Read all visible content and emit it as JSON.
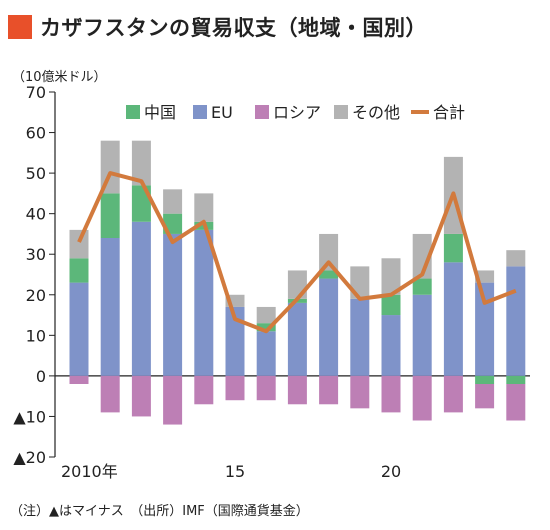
{
  "title": "カザフスタンの貿易収支（地域・国別）",
  "unit_label": "（10億米ドル）",
  "note": "（注）▲はマイナス　（出所）IMF（国際通貨基金）",
  "colors": {
    "title_mark": "#e8502a",
    "china": "#5cb77a",
    "eu": "#7f93c9",
    "russia": "#bd7fb5",
    "other": "#b3b3b3",
    "total": "#d27a3d",
    "axis": "#222222"
  },
  "chart_data": {
    "type": "bar",
    "stacked": true,
    "years": [
      2010,
      2011,
      2012,
      2013,
      2014,
      2015,
      2016,
      2017,
      2018,
      2019,
      2020,
      2021,
      2022,
      2023,
      2024
    ],
    "x_tick_labels": [
      {
        "index": 0,
        "label": "2010年"
      },
      {
        "index": 5,
        "label": "15"
      },
      {
        "index": 10,
        "label": "20"
      }
    ],
    "ylim": [
      -20,
      70
    ],
    "y_ticks": [
      {
        "value": 70,
        "label": "70"
      },
      {
        "value": 60,
        "label": "60"
      },
      {
        "value": 50,
        "label": "50"
      },
      {
        "value": 40,
        "label": "40"
      },
      {
        "value": 30,
        "label": "30"
      },
      {
        "value": 20,
        "label": "20"
      },
      {
        "value": 10,
        "label": "10"
      },
      {
        "value": 0,
        "label": "0"
      },
      {
        "value": -10,
        "label": "▲10"
      },
      {
        "value": -20,
        "label": "▲20"
      }
    ],
    "series": [
      {
        "name": "中国",
        "key": "china",
        "values": [
          6,
          11,
          9,
          5,
          2,
          0,
          2,
          1,
          2,
          0,
          5,
          4,
          7,
          0,
          0
        ]
      },
      {
        "name": "EU",
        "key": "eu",
        "values": [
          23,
          34,
          38,
          35,
          36,
          17,
          11,
          18,
          24,
          19,
          15,
          20,
          28,
          23,
          27
        ]
      },
      {
        "name": "ロシア",
        "key": "russia",
        "values": [
          -2,
          -9,
          -10,
          -12,
          -7,
          -6,
          -6,
          -7,
          -7,
          -8,
          -9,
          -11,
          -9,
          -6,
          -9
        ]
      },
      {
        "name": "その他",
        "key": "other",
        "values": [
          7,
          13,
          11,
          6,
          7,
          3,
          4,
          7,
          9,
          8,
          9,
          11,
          19,
          3,
          4
        ]
      }
    ],
    "negative_china": [
      0,
      0,
      0,
      0,
      0,
      0,
      0,
      0,
      0,
      0,
      0,
      0,
      0,
      -2,
      -2
    ],
    "total": {
      "name": "合計",
      "values": [
        33,
        50,
        48,
        33,
        38,
        14,
        11,
        19,
        28,
        19,
        20,
        25,
        45,
        18,
        21
      ]
    },
    "legend": [
      "中国",
      "EU",
      "ロシア",
      "その他",
      "合計"
    ],
    "legend_position": "top"
  }
}
